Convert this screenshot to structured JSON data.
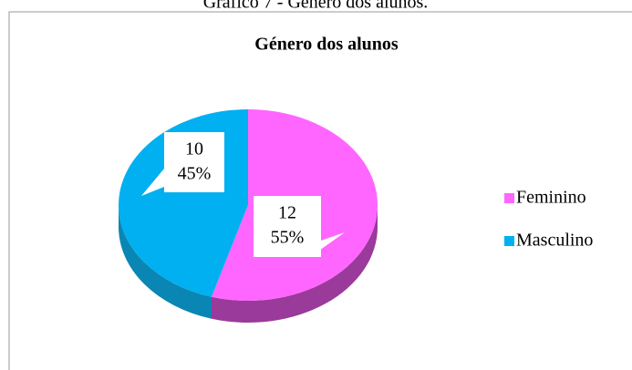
{
  "caption": "Gráfico 7 - Género dos alunos.",
  "chart_data": {
    "type": "pie",
    "title": "Género dos alunos",
    "categories": [
      "Feminino",
      "Masculino"
    ],
    "values": [
      12,
      10
    ],
    "percents": [
      55,
      45
    ],
    "percent_labels": [
      "55%",
      "45%"
    ],
    "colors": [
      "#ff66ff",
      "#00b0f0"
    ],
    "side_colors": [
      "#9a3a9a",
      "#0a86b5"
    ],
    "legend": "right"
  }
}
